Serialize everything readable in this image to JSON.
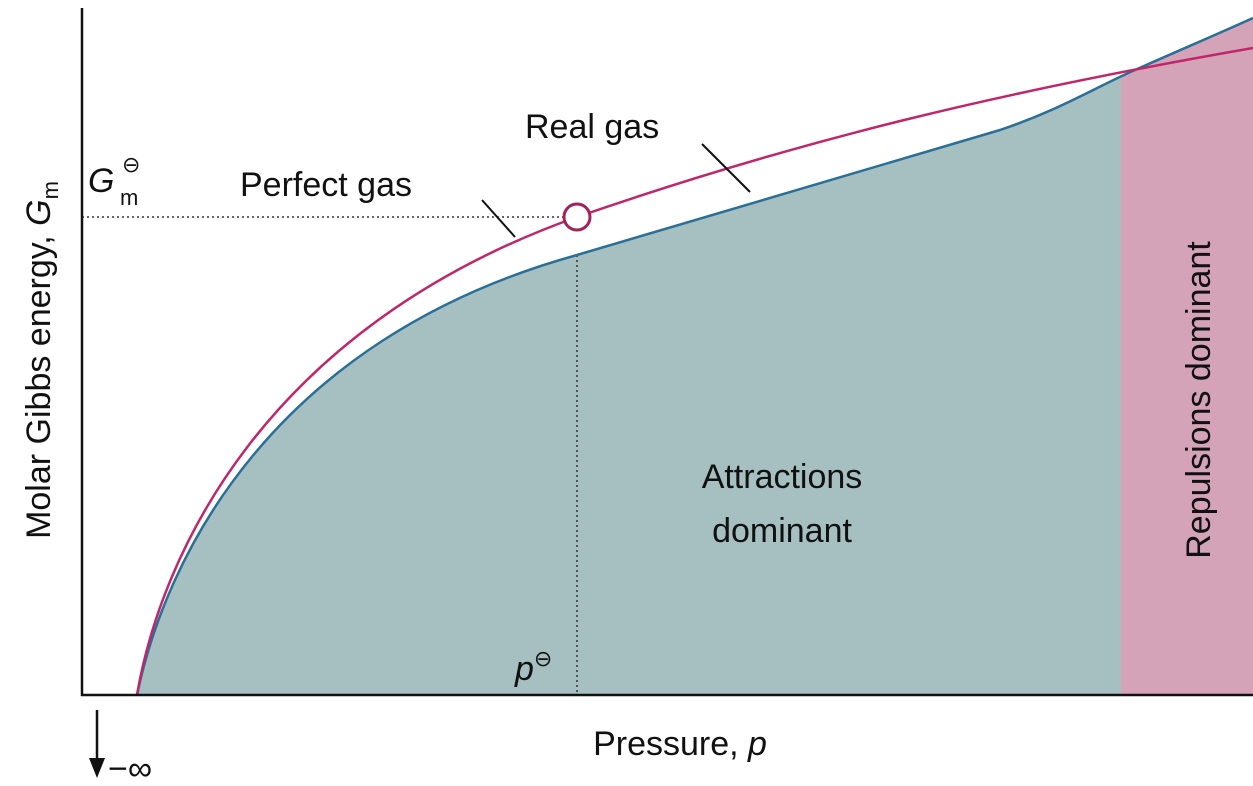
{
  "y_axis_label": {
    "text": "Molar Gibbs energy, ",
    "symbol": "G",
    "subscript": "m"
  },
  "x_axis_label": {
    "text": "Pressure, ",
    "symbol": "p"
  },
  "standard_energy": {
    "symbol": "G",
    "subscript": "m",
    "superscript": "⊖"
  },
  "standard_pressure": {
    "symbol": "p",
    "superscript": "⊖"
  },
  "curves": {
    "perfect": "Perfect gas",
    "real": "Real gas"
  },
  "regions": {
    "attractions": [
      "Attractions",
      "dominant"
    ],
    "repulsions": "Repulsions dominant"
  },
  "limit": "−∞"
}
